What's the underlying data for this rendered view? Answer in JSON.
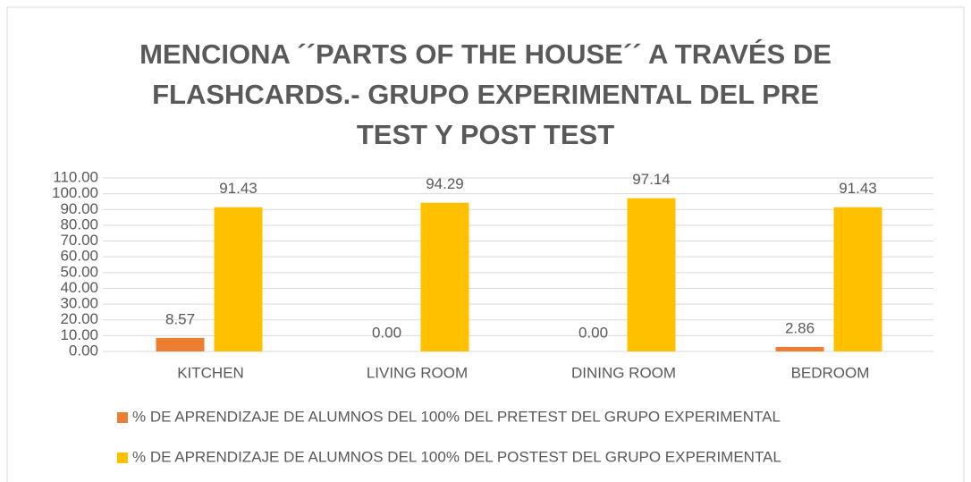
{
  "chart_data": {
    "type": "bar",
    "title": "MENCIONA ´´PARTS OF THE HOUSE´´ A TRAVÉS DE FLASHCARDS.- GRUPO EXPERIMENTAL DEL PRE TEST Y POST TEST",
    "categories": [
      "KITCHEN",
      "LIVING ROOM",
      "DINING ROOM",
      "BEDROOM"
    ],
    "series": [
      {
        "name": "% DE APRENDIZAJE DE ALUMNOS DEL 100% DEL PRETEST DEL GRUPO EXPERIMENTAL",
        "color": "#ed7d31",
        "values": [
          8.57,
          0,
          0,
          2.86
        ],
        "value_labels": [
          "8.57",
          "0.00",
          "0.00",
          "2.86"
        ]
      },
      {
        "name": "% DE APRENDIZAJE DE ALUMNOS DEL 100% DEL POSTEST DEL GRUPO EXPERIMENTAL",
        "color": "#ffc000",
        "values": [
          91.43,
          94.29,
          97.14,
          91.43
        ]
      }
    ],
    "ylim": [
      0,
      110
    ],
    "yticks": [
      {
        "value": 0,
        "label": "0.00"
      },
      {
        "value": 10,
        "label": "10.00"
      },
      {
        "value": 20,
        "label": "20.00"
      },
      {
        "value": 30,
        "label": "30.00"
      },
      {
        "value": 40,
        "label": "40.00"
      },
      {
        "value": 50,
        "label": "50.00"
      },
      {
        "value": 60,
        "label": "60.00"
      },
      {
        "value": 70,
        "label": "70.00"
      },
      {
        "value": 80,
        "label": "80.00"
      },
      {
        "value": 90,
        "label": "90.00"
      },
      {
        "value": 100,
        "label": "100.00"
      },
      {
        "value": 110,
        "label": "110.00"
      }
    ],
    "grid": true,
    "legend": "bottom"
  }
}
